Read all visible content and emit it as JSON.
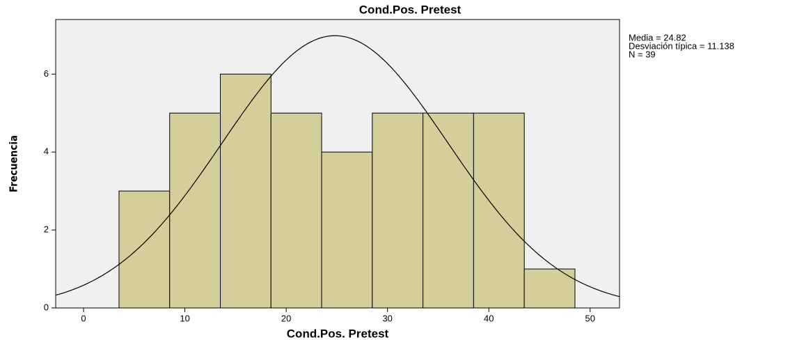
{
  "chart_data": {
    "type": "histogram",
    "title": "Cond.Pos. Pretest",
    "x_label": "Cond.Pos. Pretest",
    "y_label": "Frecuencia",
    "bins": [
      3.5,
      8.5,
      13.5,
      18.5,
      23.5,
      28.5,
      33.5,
      38.5,
      43.5,
      48.5
    ],
    "values": [
      3,
      5,
      6,
      5,
      4,
      5,
      5,
      5,
      1
    ],
    "color": "#d3ce9a",
    "xlim": [
      -2.75,
      52.9
    ],
    "xticks": [
      0,
      10,
      20,
      30,
      40,
      50
    ],
    "ylim": [
      0,
      7.4
    ],
    "yticks": [
      0,
      2,
      4,
      6
    ],
    "normal_curve": {
      "mean": 24.82,
      "sd": 11.138,
      "n": 39
    },
    "annotations": [
      "Media = 24.82",
      "Desviación típica = 11.138",
      "N = 39"
    ]
  }
}
